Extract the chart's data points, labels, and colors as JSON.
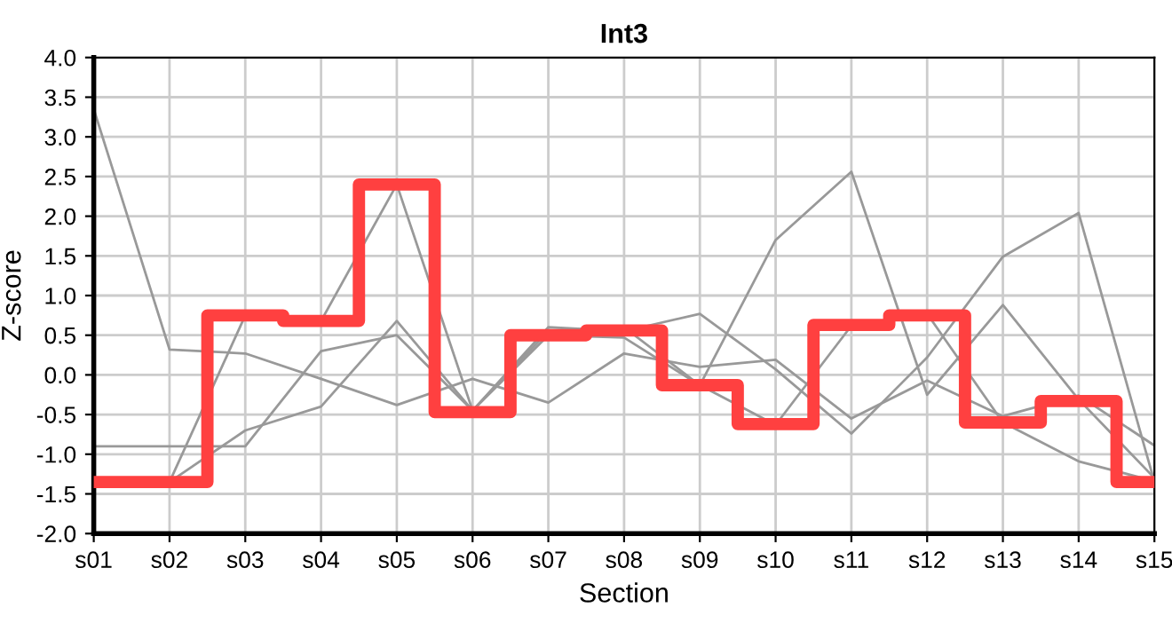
{
  "chart_data": {
    "type": "line",
    "title": "Int3",
    "xlabel": "Section",
    "ylabel": "Z-score",
    "categories": [
      "s01",
      "s02",
      "s03",
      "s04",
      "s05",
      "s06",
      "s07",
      "s08",
      "s09",
      "s10",
      "s11",
      "s12",
      "s13",
      "s14",
      "s15"
    ],
    "series": [
      {
        "color": "#999999",
        "values": [
          3.35,
          0.32,
          0.27,
          -0.05,
          -0.38,
          -0.05,
          -0.35,
          0.27,
          0.1,
          0.19,
          -0.55,
          -0.07,
          -0.52,
          -0.26,
          -0.89
        ]
      },
      {
        "color": "#999999",
        "values": [
          -0.9,
          -0.9,
          -0.9,
          0.3,
          0.5,
          -0.45,
          0.6,
          0.55,
          0.77,
          0.07,
          -0.74,
          0.22,
          1.49,
          2.04,
          -1.35
        ]
      },
      {
        "color": "#999999",
        "values": [
          -1.35,
          -1.35,
          -0.7,
          -0.4,
          0.68,
          -0.45,
          0.5,
          0.47,
          -0.13,
          1.7,
          2.56,
          -0.25,
          0.88,
          -0.31,
          -1.3
        ]
      },
      {
        "color": "#999999",
        "values": [
          -1.35,
          -1.35,
          0.75,
          0.68,
          2.4,
          -0.45,
          0.55,
          0.6,
          -0.13,
          -0.63,
          0.62,
          0.77,
          -0.6,
          -1.09,
          -1.34
        ]
      },
      {
        "type": "step",
        "color": "#ff4040",
        "values": [
          -1.35,
          -1.35,
          0.75,
          0.68,
          2.4,
          -0.47,
          0.5,
          0.56,
          -0.13,
          -0.62,
          0.63,
          0.75,
          -0.6,
          -0.33,
          -1.35
        ]
      }
    ],
    "ylim": [
      -2.0,
      4.0
    ],
    "yticks": [
      {
        "value": -2.0,
        "label": "-2.0"
      },
      {
        "value": -1.5,
        "label": "-1.5"
      },
      {
        "value": -1.0,
        "label": "-1.0"
      },
      {
        "value": -0.5,
        "label": "-0.5"
      },
      {
        "value": 0.0,
        "label": "0.0"
      },
      {
        "value": 0.5,
        "label": "0.5"
      },
      {
        "value": 1.0,
        "label": "1.0"
      },
      {
        "value": 1.5,
        "label": "1.5"
      },
      {
        "value": 2.0,
        "label": "2.0"
      },
      {
        "value": 2.5,
        "label": "2.5"
      },
      {
        "value": 3.0,
        "label": "3.0"
      },
      {
        "value": 3.5,
        "label": "3.5"
      },
      {
        "value": 4.0,
        "label": "4.0"
      }
    ],
    "grid": true,
    "legend": false
  }
}
